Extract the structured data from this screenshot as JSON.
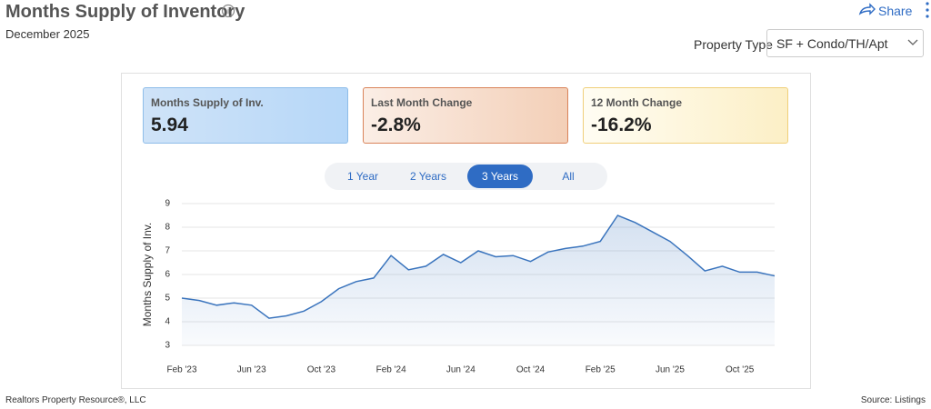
{
  "header": {
    "title": "Months Supply of Inventory",
    "subtitle": "December 2025",
    "share": "Share",
    "filter_label": "Property Type",
    "filter_value": "SF + Condo/TH/Apt"
  },
  "cards": [
    {
      "label": "Months Supply of Inv.",
      "value": "5.94"
    },
    {
      "label": "Last Month Change",
      "value": "-2.8%"
    },
    {
      "label": "12 Month Change",
      "value": "-16.2%"
    }
  ],
  "tabs": {
    "items": [
      "1 Year",
      "2 Years",
      "3 Years",
      "All"
    ],
    "active": "3 Years"
  },
  "chart_data": {
    "type": "area",
    "ylabel": "Months Supply of Inv.",
    "color": "#3a74bd",
    "categories": [
      "Feb '23",
      null,
      null,
      null,
      "Jun '23",
      null,
      null,
      null,
      "Oct '23",
      null,
      null,
      null,
      "Feb '24",
      null,
      null,
      null,
      "Jun '24",
      null,
      null,
      null,
      "Oct '24",
      null,
      null,
      null,
      "Feb '25",
      null,
      null,
      null,
      "Jun '25",
      null,
      null,
      null,
      "Oct '25",
      null,
      null
    ],
    "values": [
      5.0,
      4.9,
      4.7,
      4.8,
      4.7,
      4.15,
      4.25,
      4.45,
      4.85,
      5.4,
      5.7,
      5.85,
      6.8,
      6.2,
      6.35,
      6.85,
      6.5,
      7.0,
      6.75,
      6.8,
      6.55,
      6.95,
      7.1,
      7.2,
      7.4,
      8.5,
      8.2,
      7.8,
      7.4,
      6.8,
      6.15,
      6.35,
      6.1,
      6.1,
      5.94
    ],
    "ylim": [
      3,
      9
    ],
    "yticks": [
      3,
      4,
      5,
      6,
      7,
      8,
      9
    ],
    "grid": true
  },
  "footer": {
    "left": "Realtors Property Resource®, LLC",
    "right": "Source: Listings"
  }
}
